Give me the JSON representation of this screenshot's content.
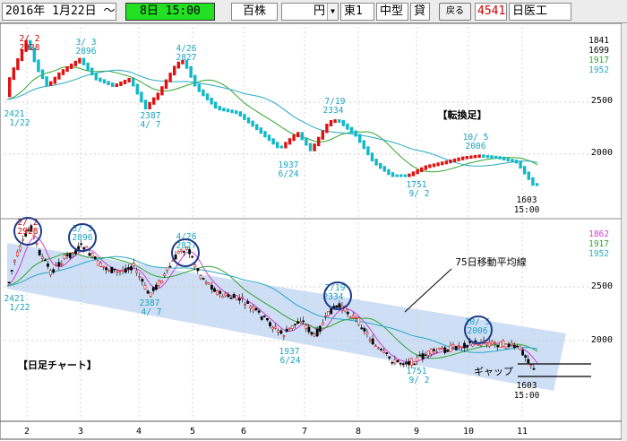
{
  "toolbar": {
    "date_range": "2016年 1月22日 ～",
    "period": "8日 15:00",
    "unit": "百株",
    "price_suffix": "円",
    "market": "東1",
    "size": "中型",
    "margin": "貸",
    "back_label": "戻る",
    "code": "4541",
    "name": "日医工"
  },
  "upper": {
    "label": "【転換足】",
    "legend": [
      {
        "text": "1841",
        "color": "#000000"
      },
      {
        "text": "1699",
        "color": "#000000"
      },
      {
        "text": "1917",
        "color": "#2fa62f"
      },
      {
        "text": "1952",
        "color": "#26a9c4"
      }
    ],
    "y_ticks": [
      "2500",
      "2000"
    ],
    "annotations": [
      {
        "top": "2/ 2",
        "bottom": "2928",
        "color": "#d00000"
      },
      {
        "top": "3/ 3",
        "bottom": "2896",
        "color": "#1aa4bf"
      },
      {
        "top": "4/26",
        "bottom": "2827",
        "color": "#1aa4bf"
      },
      {
        "top": "7/19",
        "bottom": "2334",
        "color": "#1aa4bf"
      },
      {
        "top": "10/ 5",
        "bottom": "2006",
        "color": "#1aa4bf"
      },
      {
        "top": "2421",
        "bottom": "1/22",
        "color": "#1aa4bf"
      },
      {
        "top": "2387",
        "bottom": "4/ 7",
        "color": "#1aa4bf"
      },
      {
        "top": "1937",
        "bottom": "6/24",
        "color": "#1aa4bf"
      },
      {
        "top": "1751",
        "bottom": "9/ 2",
        "color": "#1aa4bf"
      },
      {
        "top": "1603",
        "bottom": "15:00",
        "color": "#000000"
      }
    ]
  },
  "lower": {
    "label": "【日足チャート】",
    "ma_label": "75日移動平均線",
    "gap_label": "ギャップ",
    "legend": [
      {
        "text": "1862",
        "color": "#d23cd2"
      },
      {
        "text": "1917",
        "color": "#2fa62f"
      },
      {
        "text": "1952",
        "color": "#26a9c4"
      }
    ],
    "y_ticks": [
      "2500",
      "2000"
    ],
    "annotations": [
      {
        "top": "2/ 2",
        "bottom": "2928",
        "color": "#d00000"
      },
      {
        "top": "3/ 3",
        "bottom": "2896",
        "color": "#1aa4bf"
      },
      {
        "top": "4/26",
        "bottom": "2827",
        "color": "#1aa4bf"
      },
      {
        "top": "7/19",
        "bottom": "2334",
        "color": "#1aa4bf"
      },
      {
        "top": "10/ 5",
        "bottom": "2006",
        "color": "#1aa4bf"
      },
      {
        "top": "2421",
        "bottom": "1/22",
        "color": "#1aa4bf"
      },
      {
        "top": "2387",
        "bottom": "4/ 7",
        "color": "#1aa4bf"
      },
      {
        "top": "1937",
        "bottom": "6/24",
        "color": "#1aa4bf"
      },
      {
        "top": "1751",
        "bottom": "9/ 2",
        "color": "#1aa4bf"
      },
      {
        "top": "1603",
        "bottom": "15:00",
        "color": "#000000"
      }
    ]
  },
  "x_axis": [
    "2",
    "3",
    "4",
    "5",
    "6",
    "7",
    "8",
    "9",
    "10",
    "11"
  ],
  "colors": {
    "up": "#e01010",
    "down": "#10b8c8",
    "ma_fast": "#d23cd2",
    "ma_mid": "#2fa62f",
    "ma_slow": "#26a9c4",
    "channel": "#b4cdf0",
    "circle": "#1f3c88"
  }
}
